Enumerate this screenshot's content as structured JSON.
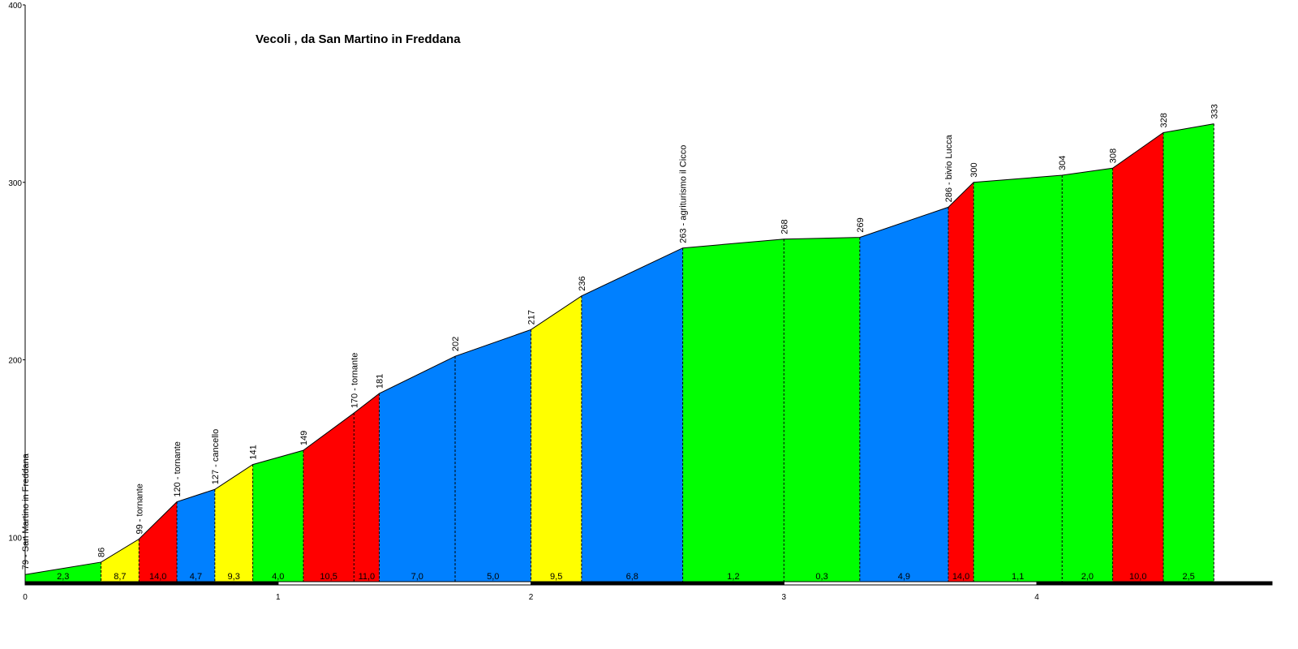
{
  "chart_data": {
    "type": "elevation-profile",
    "title": "Vecoli , da San Martino in Freddana",
    "x": [
      0,
      0.3,
      0.45,
      0.6,
      0.75,
      0.9,
      1.1,
      1.3,
      1.4,
      1.7,
      2.0,
      2.2,
      2.6,
      3.0,
      3.3,
      3.65,
      3.75,
      4.1,
      4.3,
      4.5,
      4.7
    ],
    "values": [
      79,
      86,
      99,
      120,
      127,
      141,
      149,
      170,
      181,
      202,
      217,
      236,
      263,
      268,
      269,
      286,
      300,
      304,
      308,
      328,
      333
    ],
    "value_labels": [
      "79 - San Martino in Freddana",
      "86",
      "99 - tornante",
      "120 - tornante",
      "127 - cancello",
      "141",
      "149",
      "170 - tornante",
      "181",
      "202",
      "217",
      "236",
      "263 - agriturismo il Cicco",
      "268",
      "269",
      "286 - bivio Lucca",
      "300",
      "304",
      "308",
      "328",
      "333"
    ],
    "gradients": [
      2.3,
      8.7,
      14.0,
      4.7,
      9.3,
      4.0,
      10.5,
      11.0,
      7.0,
      5.0,
      9.5,
      6.8,
      1.2,
      0.3,
      4.9,
      14.0,
      1.1,
      2.0,
      10.0,
      2.5
    ],
    "gradient_labels": [
      "2,3",
      "8,7",
      "14,0",
      "4,7",
      "9,3",
      "4,0",
      "10,5",
      "11,0",
      "7,0",
      "5,0",
      "9,5",
      "6,8",
      "1,2",
      "0,3",
      "4,9",
      "14,0",
      "1,1",
      "2,0",
      "10,0",
      "2,5"
    ],
    "segment_colors": [
      "#00ff00",
      "#ffff00",
      "#ff0000",
      "#0080ff",
      "#ffff00",
      "#00ff00",
      "#ff0000",
      "#ff0000",
      "#0080ff",
      "#0080ff",
      "#ffff00",
      "#0080ff",
      "#00ff00",
      "#00ff00",
      "#0080ff",
      "#ff0000",
      "#00ff00",
      "#00ff00",
      "#ff0000",
      "#00ff00"
    ],
    "xlim": [
      0,
      4.93
    ],
    "ylim": [
      75,
      400
    ],
    "xticks": [
      0,
      1,
      2,
      3,
      4
    ],
    "yticks": [
      100,
      200,
      300,
      400
    ]
  }
}
